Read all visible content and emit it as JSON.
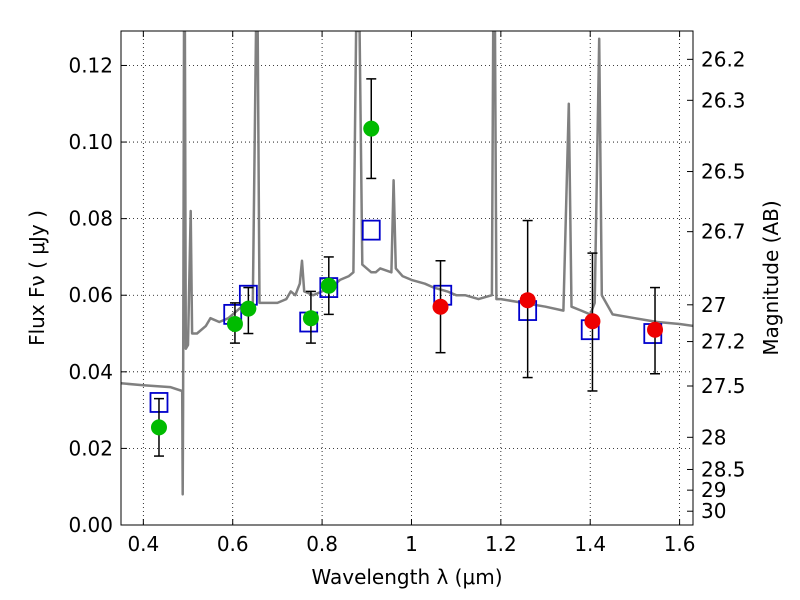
{
  "chart_data": {
    "type": "scatter",
    "xlabel": "Wavelength  λ (μm)",
    "ylabel": "Flux  Fν  ( μJy )",
    "ylabel_right": "Magnitude (AB)",
    "xlim": [
      0.35,
      1.63
    ],
    "ylim": [
      0.0,
      0.129
    ],
    "grid": true,
    "x_ticks": [
      0.4,
      0.6,
      0.8,
      1.0,
      1.2,
      1.4,
      1.6
    ],
    "x_tick_labels": [
      "0.4",
      "0.6",
      "0.8",
      "1",
      "1.2",
      "1.4",
      "1.6"
    ],
    "y_ticks": [
      0.0,
      0.02,
      0.04,
      0.06,
      0.08,
      0.1,
      0.12
    ],
    "y_tick_labels": [
      "0.00",
      "0.02",
      "0.04",
      "0.06",
      "0.08",
      "0.10",
      "0.12"
    ],
    "right_ticks": [
      {
        "flux": 0.1216,
        "label": "26.2"
      },
      {
        "flux": 0.1109,
        "label": "26.3"
      },
      {
        "flux": 0.0923,
        "label": "26.5"
      },
      {
        "flux": 0.0766,
        "label": "26.7"
      },
      {
        "flux": 0.0575,
        "label": "27"
      },
      {
        "flux": 0.0479,
        "label": "27.2"
      },
      {
        "flux": 0.0363,
        "label": "27.5"
      },
      {
        "flux": 0.0229,
        "label": "28"
      },
      {
        "flux": 0.0145,
        "label": "28.5"
      },
      {
        "flux": 0.0091,
        "label": "29"
      },
      {
        "flux": 0.0036,
        "label": "30"
      }
    ],
    "series": [
      {
        "kind": "spectrum",
        "color": "#808080",
        "points": [
          [
            0.35,
            0.037
          ],
          [
            0.4,
            0.0365
          ],
          [
            0.46,
            0.036
          ],
          [
            0.487,
            0.035
          ],
          [
            0.488,
            0.008
          ],
          [
            0.489,
            0.031
          ],
          [
            0.491,
            0.129
          ],
          [
            0.493,
            0.129
          ],
          [
            0.495,
            0.046
          ],
          [
            0.5,
            0.047
          ],
          [
            0.506,
            0.082
          ],
          [
            0.509,
            0.05
          ],
          [
            0.52,
            0.05
          ],
          [
            0.54,
            0.052
          ],
          [
            0.55,
            0.054
          ],
          [
            0.57,
            0.053
          ],
          [
            0.59,
            0.054
          ],
          [
            0.6,
            0.055
          ],
          [
            0.61,
            0.056
          ],
          [
            0.62,
            0.057
          ],
          [
            0.63,
            0.056
          ],
          [
            0.645,
            0.058
          ],
          [
            0.652,
            0.129
          ],
          [
            0.656,
            0.129
          ],
          [
            0.66,
            0.058
          ],
          [
            0.68,
            0.058
          ],
          [
            0.7,
            0.058
          ],
          [
            0.72,
            0.059
          ],
          [
            0.73,
            0.061
          ],
          [
            0.74,
            0.06
          ],
          [
            0.75,
            0.063
          ],
          [
            0.755,
            0.069
          ],
          [
            0.76,
            0.061
          ],
          [
            0.78,
            0.06
          ],
          [
            0.8,
            0.061
          ],
          [
            0.82,
            0.062
          ],
          [
            0.84,
            0.064
          ],
          [
            0.86,
            0.065
          ],
          [
            0.87,
            0.066
          ],
          [
            0.876,
            0.129
          ],
          [
            0.884,
            0.129
          ],
          [
            0.89,
            0.068
          ],
          [
            0.9,
            0.067
          ],
          [
            0.91,
            0.066
          ],
          [
            0.92,
            0.066
          ],
          [
            0.93,
            0.067
          ],
          [
            0.955,
            0.066
          ],
          [
            0.96,
            0.09
          ],
          [
            0.965,
            0.067
          ],
          [
            0.98,
            0.065
          ],
          [
            1.0,
            0.064
          ],
          [
            1.03,
            0.063
          ],
          [
            1.05,
            0.062
          ],
          [
            1.08,
            0.061
          ],
          [
            1.1,
            0.06
          ],
          [
            1.12,
            0.06
          ],
          [
            1.15,
            0.059
          ],
          [
            1.18,
            0.06
          ],
          [
            1.183,
            0.129
          ],
          [
            1.187,
            0.129
          ],
          [
            1.19,
            0.059
          ],
          [
            1.2,
            0.059
          ],
          [
            1.25,
            0.058
          ],
          [
            1.3,
            0.057
          ],
          [
            1.34,
            0.056
          ],
          [
            1.352,
            0.11
          ],
          [
            1.358,
            0.057
          ],
          [
            1.38,
            0.056
          ],
          [
            1.4,
            0.055
          ],
          [
            1.41,
            0.058
          ],
          [
            1.42,
            0.127
          ],
          [
            1.426,
            0.06
          ],
          [
            1.45,
            0.055
          ],
          [
            1.5,
            0.054
          ],
          [
            1.55,
            0.053
          ],
          [
            1.6,
            0.0525
          ],
          [
            1.63,
            0.052
          ]
        ]
      },
      {
        "kind": "model-box",
        "color": "#0000cc",
        "points": [
          [
            0.435,
            0.032
          ],
          [
            0.6,
            0.055
          ],
          [
            0.635,
            0.06
          ],
          [
            0.77,
            0.053
          ],
          [
            0.815,
            0.062
          ],
          [
            0.91,
            0.077
          ],
          [
            1.07,
            0.06
          ],
          [
            1.26,
            0.056
          ],
          [
            1.4,
            0.051
          ],
          [
            1.54,
            0.05
          ]
        ]
      },
      {
        "kind": "observed-green",
        "color": "#00bb00",
        "points": [
          {
            "x": 0.435,
            "y": 0.0255,
            "err": [
              0.018,
              0.033
            ]
          },
          {
            "x": 0.605,
            "y": 0.0525,
            "err": [
              0.0475,
              0.058
            ]
          },
          {
            "x": 0.635,
            "y": 0.0565,
            "err": [
              0.05,
              0.062
            ]
          },
          {
            "x": 0.775,
            "y": 0.054,
            "err": [
              0.0475,
              0.061
            ]
          },
          {
            "x": 0.815,
            "y": 0.0625,
            "err": [
              0.055,
              0.07
            ]
          },
          {
            "x": 0.91,
            "y": 0.1035,
            "err": [
              0.0905,
              0.1165
            ]
          }
        ]
      },
      {
        "kind": "observed-red",
        "color": "#ee0000",
        "points": [
          {
            "x": 1.065,
            "y": 0.057,
            "err": [
              0.045,
              0.069
            ]
          },
          {
            "x": 1.26,
            "y": 0.0587,
            "err": [
              0.0385,
              0.0795
            ]
          },
          {
            "x": 1.405,
            "y": 0.0532,
            "err": [
              0.035,
              0.071
            ]
          },
          {
            "x": 1.545,
            "y": 0.051,
            "err": [
              0.0395,
              0.062
            ]
          }
        ]
      }
    ]
  }
}
